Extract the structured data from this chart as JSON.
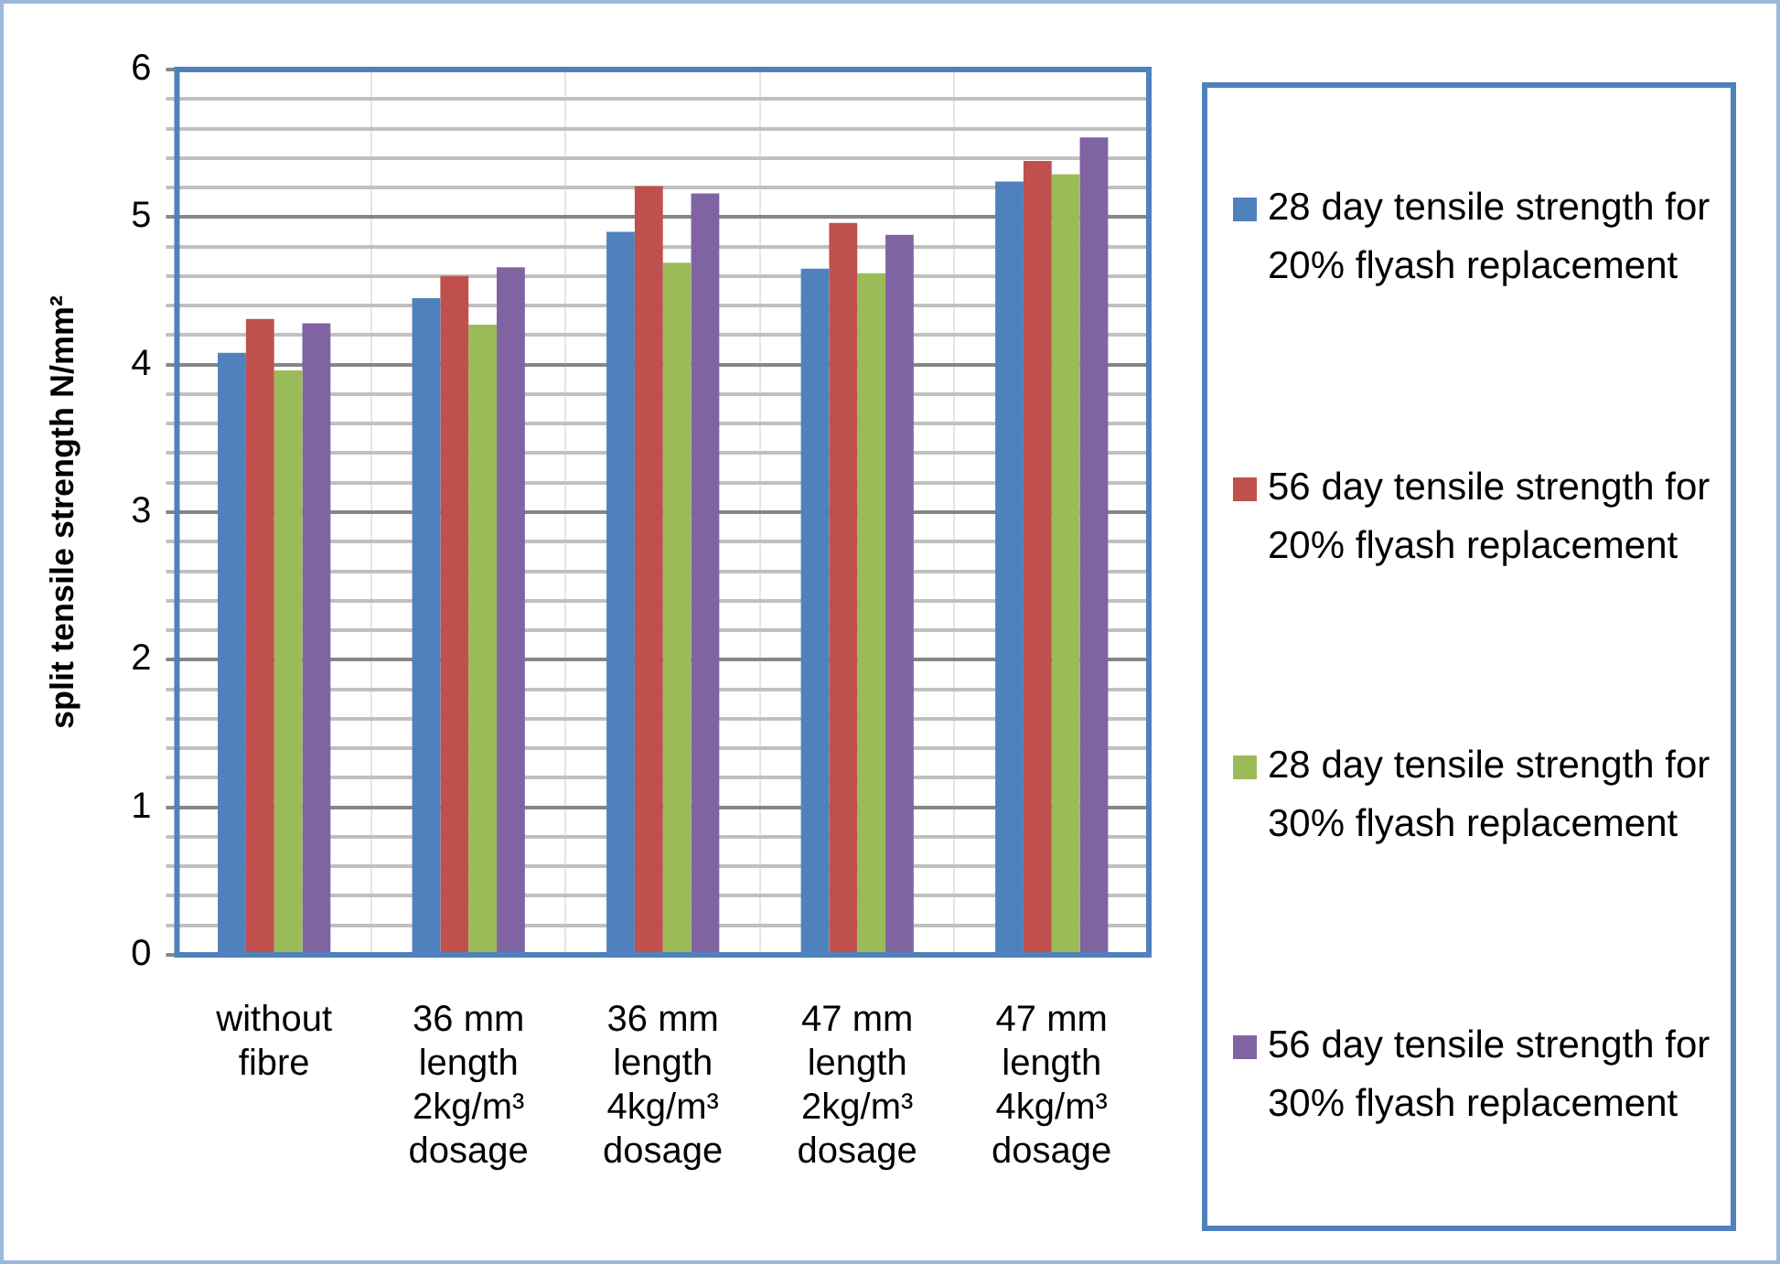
{
  "chart_data": {
    "type": "bar",
    "ylabel": "split tensile strength N/mm²",
    "categories": [
      "without fibre",
      "36 mm length 2kg/m³ dosage",
      "36 mm length 4kg/m³ dosage",
      "47 mm length 2kg/m³ dosage",
      "47 mm length 4kg/m³ dosage"
    ],
    "series": [
      {
        "name": "28 day tensile strength for 20% flyash replacement",
        "color": "#4f81bd",
        "values": [
          4.08,
          4.45,
          4.9,
          4.65,
          5.24
        ]
      },
      {
        "name": "56 day tensile strength for 20% flyash replacement",
        "color": "#c0504d",
        "values": [
          4.31,
          4.6,
          5.21,
          4.96,
          5.38
        ]
      },
      {
        "name": "28 day tensile strength for 30% flyash replacement",
        "color": "#9bbb59",
        "values": [
          3.96,
          4.27,
          4.69,
          4.62,
          5.29
        ]
      },
      {
        "name": "56 day tensile strength for 30% flyash replacement",
        "color": "#8064a2",
        "values": [
          4.28,
          4.66,
          5.16,
          4.88,
          5.54
        ]
      }
    ],
    "ylim": [
      0,
      6
    ],
    "yticks": [
      0,
      {
        "value": 0.2,
        "label": null
      },
      {
        "value": 0.4,
        "label": null
      },
      {
        "value": 0.6,
        "label": null
      },
      {
        "value": 0.8,
        "label": null
      },
      1,
      {
        "value": 1.2,
        "label": null
      },
      {
        "value": 1.4,
        "label": null
      },
      {
        "value": 1.6,
        "label": null
      },
      {
        "value": 1.8,
        "label": null
      },
      2,
      {
        "value": 2.2,
        "label": null
      },
      {
        "value": 2.4,
        "label": null
      },
      {
        "value": 2.6,
        "label": null
      },
      {
        "value": 2.8,
        "label": null
      },
      3,
      {
        "value": 3.2,
        "label": null
      },
      {
        "value": 3.4,
        "label": null
      },
      {
        "value": 3.6,
        "label": null
      },
      {
        "value": 3.8,
        "label": null
      },
      4,
      {
        "value": 4.2,
        "label": null
      },
      {
        "value": 4.4,
        "label": null
      },
      {
        "value": 4.6,
        "label": null
      },
      {
        "value": 4.8,
        "label": null
      },
      5,
      {
        "value": 5.2,
        "label": null
      },
      {
        "value": 5.4,
        "label": null
      },
      {
        "value": 5.6,
        "label": null
      },
      {
        "value": 5.8,
        "label": null
      },
      6
    ],
    "grid": true,
    "legend": "right"
  }
}
